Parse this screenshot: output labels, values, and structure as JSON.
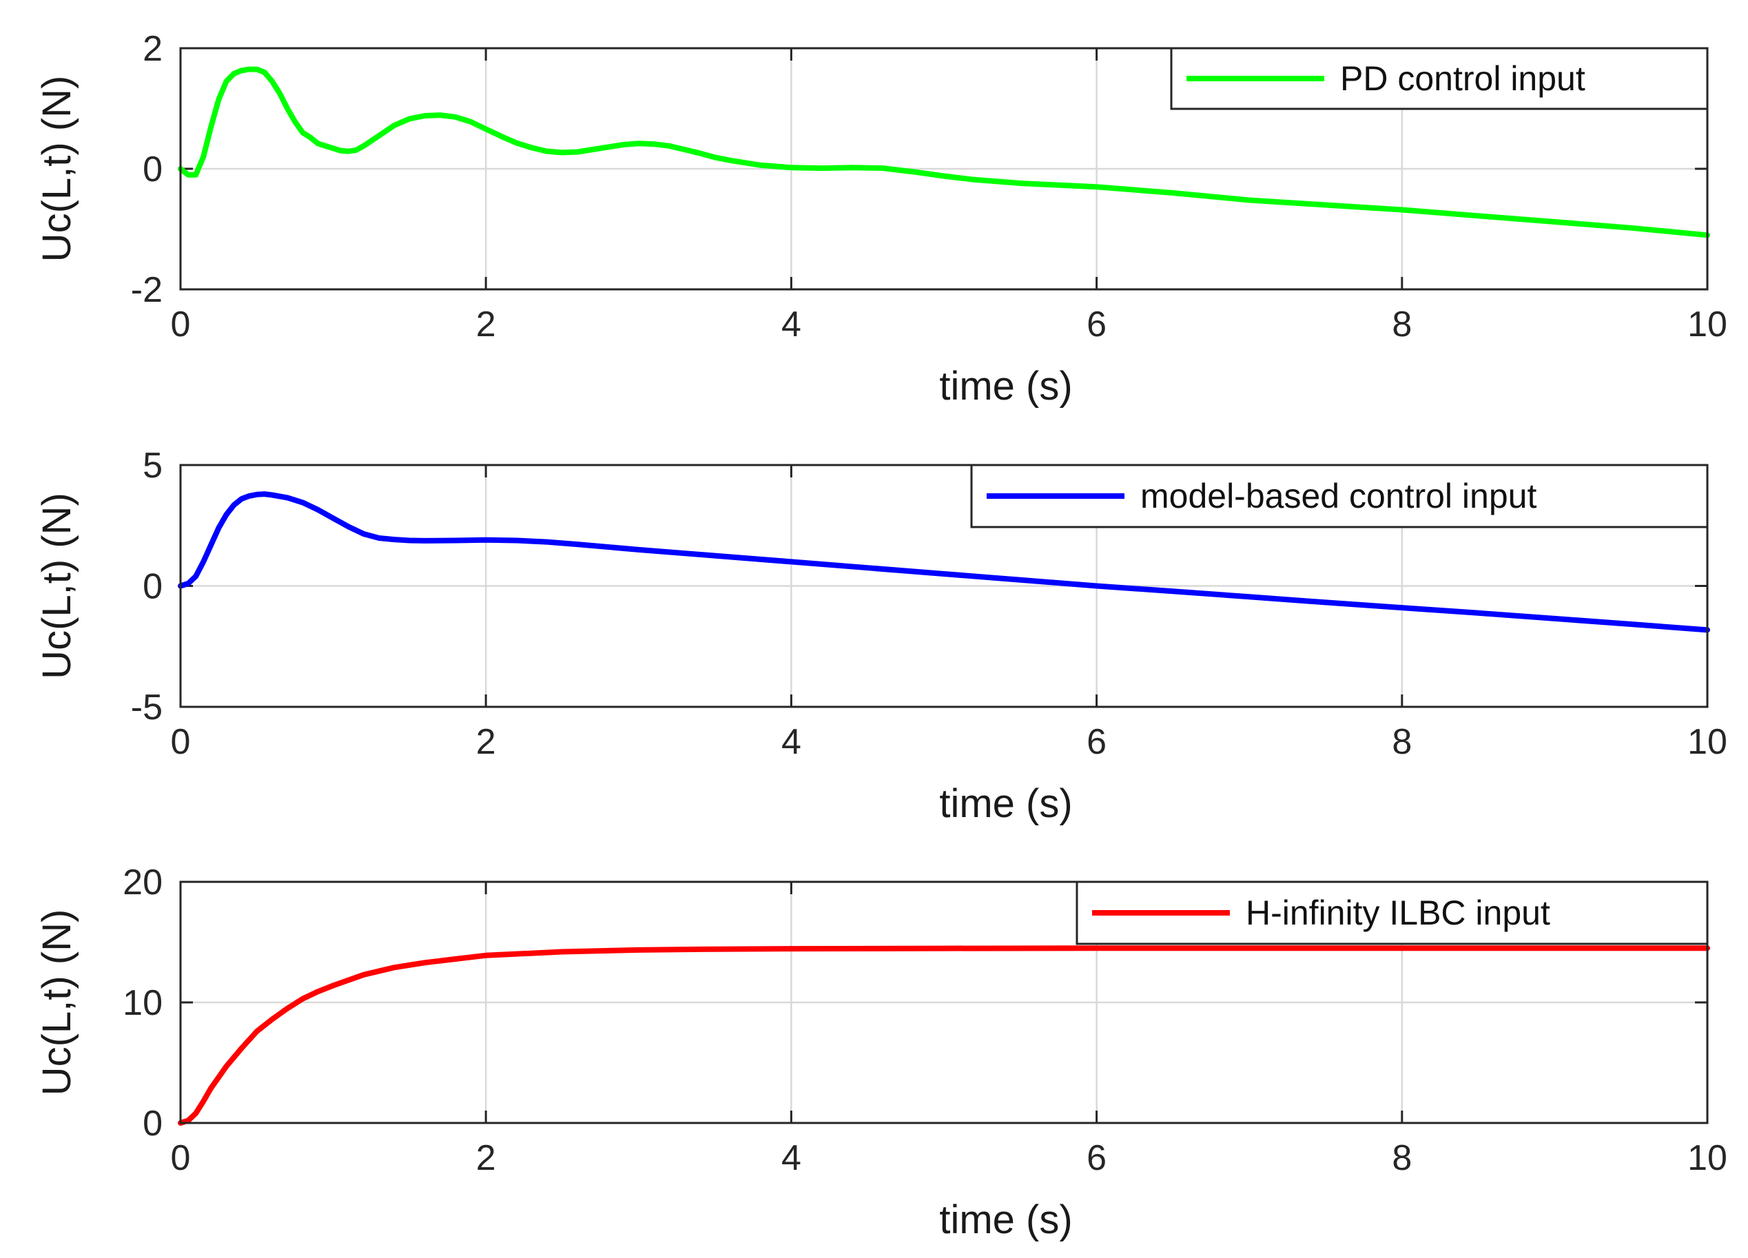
{
  "chart_data": [
    {
      "type": "line",
      "title": "",
      "xlabel": "time (s)",
      "ylabel": "Uc(L,t) (N)",
      "xlim": [
        0,
        10
      ],
      "ylim": [
        -2,
        2
      ],
      "xticks": [
        "0",
        "2",
        "4",
        "6",
        "8",
        "10"
      ],
      "yticks": [
        "-2",
        "0",
        "2"
      ],
      "grid": true,
      "legend_position": "top-right",
      "series": [
        {
          "name": "PD control input",
          "color": "#00ff00",
          "x": [
            0,
            0.05,
            0.1,
            0.15,
            0.2,
            0.25,
            0.3,
            0.35,
            0.4,
            0.45,
            0.5,
            0.55,
            0.6,
            0.65,
            0.7,
            0.75,
            0.8,
            0.85,
            0.9,
            0.95,
            1.0,
            1.05,
            1.1,
            1.15,
            1.2,
            1.3,
            1.4,
            1.5,
            1.6,
            1.7,
            1.8,
            1.9,
            2.0,
            2.1,
            2.2,
            2.3,
            2.4,
            2.5,
            2.6,
            2.7,
            2.8,
            2.9,
            3.0,
            3.1,
            3.2,
            3.3,
            3.4,
            3.5,
            3.6,
            3.7,
            3.8,
            3.9,
            4.0,
            4.2,
            4.4,
            4.6,
            4.8,
            5.0,
            5.2,
            5.5,
            6.0,
            6.5,
            7.0,
            7.5,
            8.0,
            8.5,
            9.0,
            9.5,
            10.0
          ],
          "y": [
            0.0,
            -0.1,
            -0.1,
            0.2,
            0.7,
            1.15,
            1.45,
            1.58,
            1.63,
            1.65,
            1.65,
            1.6,
            1.45,
            1.25,
            1.0,
            0.78,
            0.6,
            0.52,
            0.42,
            0.38,
            0.34,
            0.3,
            0.29,
            0.31,
            0.38,
            0.55,
            0.72,
            0.83,
            0.88,
            0.89,
            0.86,
            0.78,
            0.66,
            0.54,
            0.43,
            0.35,
            0.29,
            0.27,
            0.28,
            0.32,
            0.36,
            0.4,
            0.42,
            0.41,
            0.38,
            0.32,
            0.26,
            0.19,
            0.14,
            0.1,
            0.06,
            0.04,
            0.02,
            0.01,
            0.02,
            0.01,
            -0.05,
            -0.12,
            -0.18,
            -0.24,
            -0.3,
            -0.4,
            -0.52,
            -0.6,
            -0.68,
            -0.78,
            -0.88,
            -0.98,
            -1.1
          ]
        }
      ]
    },
    {
      "type": "line",
      "title": "",
      "xlabel": "time (s)",
      "ylabel": "Uc(L,t) (N)",
      "xlim": [
        0,
        10
      ],
      "ylim": [
        -5,
        5
      ],
      "xticks": [
        "0",
        "2",
        "4",
        "6",
        "8",
        "10"
      ],
      "yticks": [
        "-5",
        "0",
        "5"
      ],
      "grid": true,
      "legend_position": "top-right",
      "series": [
        {
          "name": "model-based control input",
          "color": "#0000ff",
          "x": [
            0,
            0.05,
            0.1,
            0.15,
            0.2,
            0.25,
            0.3,
            0.35,
            0.4,
            0.45,
            0.5,
            0.55,
            0.6,
            0.7,
            0.8,
            0.9,
            1.0,
            1.1,
            1.2,
            1.3,
            1.4,
            1.5,
            1.6,
            1.8,
            2.0,
            2.2,
            2.4,
            2.6,
            3.0,
            3.5,
            4.0,
            4.5,
            5.0,
            5.5,
            6.0,
            6.5,
            7.0,
            7.5,
            8.0,
            8.5,
            9.0,
            9.5,
            10.0
          ],
          "y": [
            0.0,
            0.1,
            0.4,
            1.0,
            1.7,
            2.4,
            2.95,
            3.35,
            3.6,
            3.72,
            3.78,
            3.8,
            3.76,
            3.65,
            3.45,
            3.15,
            2.8,
            2.45,
            2.15,
            1.98,
            1.92,
            1.88,
            1.87,
            1.88,
            1.9,
            1.88,
            1.82,
            1.72,
            1.5,
            1.25,
            1.0,
            0.75,
            0.5,
            0.25,
            0.0,
            -0.22,
            -0.45,
            -0.68,
            -0.9,
            -1.12,
            -1.35,
            -1.58,
            -1.82
          ]
        }
      ]
    },
    {
      "type": "line",
      "title": "",
      "xlabel": "time (s)",
      "ylabel": "Uc(L,t) (N)",
      "xlim": [
        0,
        10
      ],
      "ylim": [
        0,
        20
      ],
      "xticks": [
        "0",
        "2",
        "4",
        "6",
        "8",
        "10"
      ],
      "yticks": [
        "0",
        "10",
        "20"
      ],
      "grid": true,
      "legend_position": "top-right",
      "series": [
        {
          "name": "H-infinity ILBC input",
          "color": "#ff0000",
          "x": [
            0,
            0.05,
            0.1,
            0.15,
            0.2,
            0.3,
            0.4,
            0.5,
            0.6,
            0.7,
            0.8,
            0.9,
            1.0,
            1.2,
            1.4,
            1.6,
            1.8,
            2.0,
            2.5,
            3.0,
            3.5,
            4.0,
            5.0,
            6.0,
            7.0,
            8.0,
            9.0,
            10.0
          ],
          "y": [
            0.0,
            0.2,
            0.8,
            1.8,
            2.9,
            4.7,
            6.2,
            7.6,
            8.6,
            9.5,
            10.3,
            10.9,
            11.4,
            12.3,
            12.9,
            13.3,
            13.6,
            13.9,
            14.2,
            14.35,
            14.42,
            14.45,
            14.48,
            14.5,
            14.5,
            14.5,
            14.5,
            14.5
          ]
        }
      ]
    }
  ]
}
